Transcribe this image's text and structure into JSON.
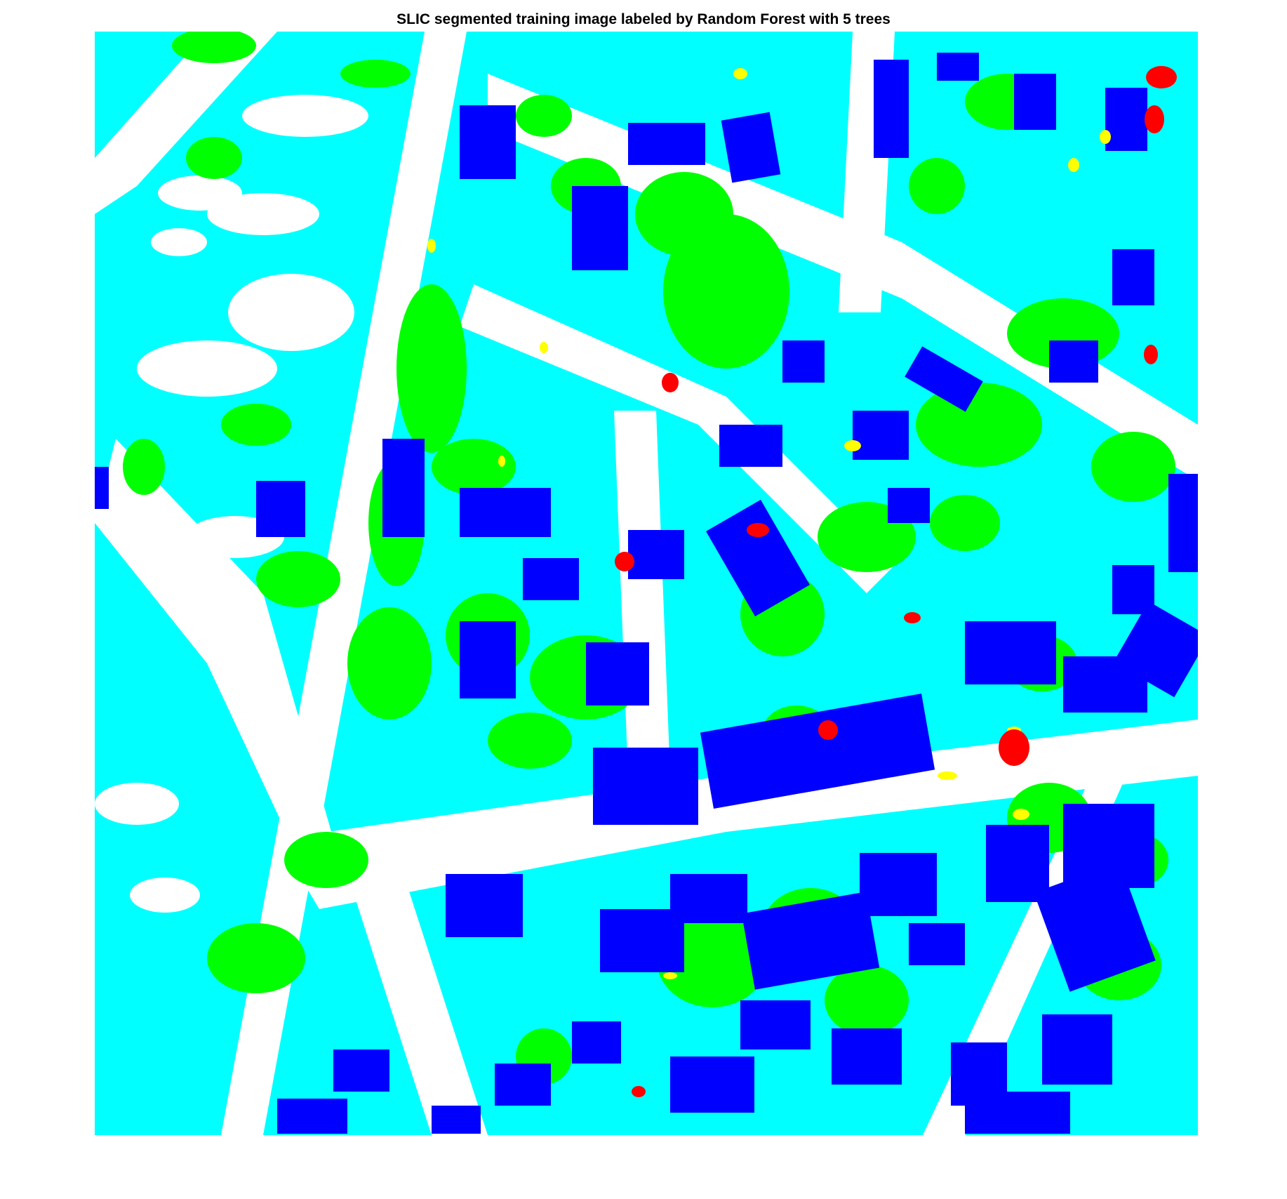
{
  "figure": {
    "title": "SLIC segmented training image labeled by Random Forest with 5 trees"
  },
  "legend_colors": {
    "impervious_surface": "#ffffff",
    "building": "#0000ff",
    "low_vegetation": "#00ffff",
    "tree": "#00ff00",
    "car": "#ffff00",
    "clutter": "#ff0000"
  }
}
